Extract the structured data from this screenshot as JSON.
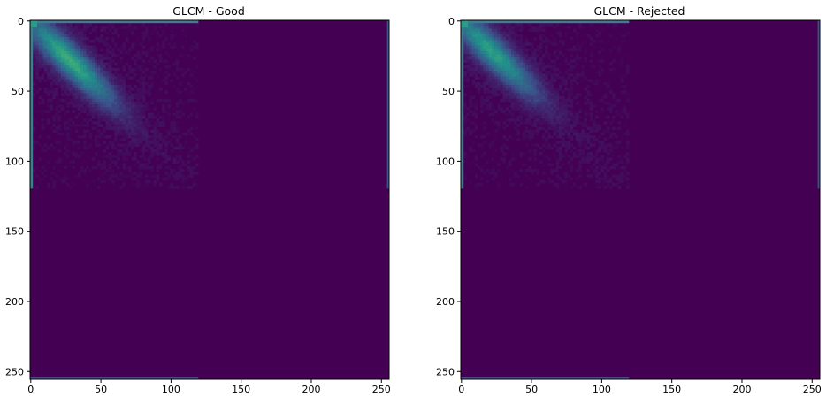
{
  "figure": {
    "colormap": "viridis",
    "colors": {
      "background_low": "#440154",
      "diag_peak": "#21918c",
      "edge": "#3b528b",
      "axis": "#000000",
      "page": "#ffffff"
    }
  },
  "chart_data": [
    {
      "type": "heatmap",
      "title": "GLCM - Good",
      "xlabel": "",
      "ylabel": "",
      "xlim": [
        0,
        255
      ],
      "ylim": [
        255,
        0
      ],
      "x_ticks": [
        0,
        50,
        100,
        150,
        200,
        250
      ],
      "y_ticks": [
        0,
        50,
        100,
        150,
        200,
        250
      ],
      "x_tick_labels": [
        "0",
        "50",
        "100",
        "150",
        "200",
        "250"
      ],
      "y_tick_labels": [
        "0",
        "50",
        "100",
        "150",
        "200",
        "250"
      ],
      "matrix_size": [
        256,
        256
      ],
      "active_region": {
        "rows": [
          0,
          120
        ],
        "cols": [
          0,
          120
        ]
      },
      "diagonal_peak": {
        "row_range": [
          15,
          45
        ],
        "col_range": [
          15,
          45
        ],
        "center": [
          28,
          28
        ],
        "relative_intensity": 0.55
      },
      "edge_bands": {
        "first_row_cols": [
          0,
          120
        ],
        "first_col_rows": [
          0,
          120
        ],
        "last_row_cols": [
          0,
          120
        ],
        "last_col_rows": [
          0,
          120
        ]
      },
      "grid": false,
      "legend": "none"
    },
    {
      "type": "heatmap",
      "title": "GLCM - Rejected",
      "xlabel": "",
      "ylabel": "",
      "xlim": [
        0,
        255
      ],
      "ylim": [
        255,
        0
      ],
      "x_ticks": [
        0,
        50,
        100,
        150,
        200,
        250
      ],
      "y_ticks": [
        0,
        50,
        100,
        150,
        200,
        250
      ],
      "x_tick_labels": [
        "0",
        "50",
        "100",
        "150",
        "200",
        "250"
      ],
      "y_tick_labels": [
        "0",
        "50",
        "100",
        "150",
        "200",
        "250"
      ],
      "matrix_size": [
        256,
        256
      ],
      "active_region": {
        "rows": [
          0,
          120
        ],
        "cols": [
          0,
          120
        ]
      },
      "diagonal_peak": {
        "row_range": [
          10,
          40
        ],
        "col_range": [
          10,
          40
        ],
        "center": [
          22,
          22
        ],
        "relative_intensity": 0.5
      },
      "edge_bands": {
        "first_row_cols": [
          0,
          120
        ],
        "first_col_rows": [
          0,
          120
        ],
        "last_row_cols": [
          0,
          120
        ],
        "last_col_rows": [
          0,
          120
        ]
      },
      "grid": false,
      "legend": "none"
    }
  ]
}
